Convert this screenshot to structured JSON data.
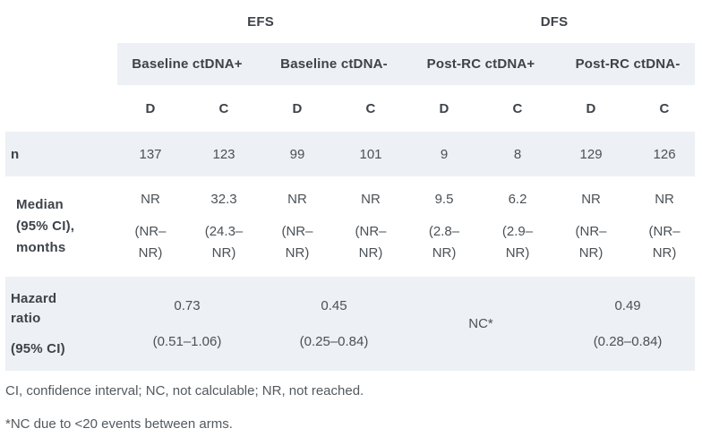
{
  "table": {
    "sections": [
      {
        "label": "EFS"
      },
      {
        "label": "DFS"
      }
    ],
    "groups": [
      {
        "label": "Baseline ctDNA+"
      },
      {
        "label": "Baseline ctDNA-"
      },
      {
        "label": "Post-RC ctDNA+"
      },
      {
        "label": "Post-RC ctDNA-"
      }
    ],
    "subcolumns": [
      "D",
      "C",
      "D",
      "C",
      "D",
      "C",
      "D",
      "C"
    ],
    "rows": {
      "n": {
        "label": "n",
        "values": [
          "137",
          "123",
          "99",
          "101",
          "9",
          "8",
          "129",
          "126"
        ]
      },
      "median": {
        "label": "Median (95% CI), months",
        "cells": [
          {
            "value": "NR",
            "ci_lines": [
              "(NR–",
              "NR)"
            ]
          },
          {
            "value": "32.3",
            "ci_lines": [
              "(24.3–",
              "NR)"
            ]
          },
          {
            "value": "NR",
            "ci_lines": [
              "(NR–",
              "NR)"
            ]
          },
          {
            "value": "NR",
            "ci_lines": [
              "(NR–",
              "NR)"
            ]
          },
          {
            "value": "9.5",
            "ci_lines": [
              "(2.8–",
              "NR)"
            ]
          },
          {
            "value": "6.2",
            "ci_lines": [
              "(2.9–",
              "NR)"
            ]
          },
          {
            "value": "NR",
            "ci_lines": [
              "(NR–",
              "NR)"
            ]
          },
          {
            "value": "NR",
            "ci_lines": [
              "(NR–",
              "NR)"
            ]
          }
        ]
      },
      "hazard": {
        "label_line1": "Hazard ratio",
        "label_line2": "(95% CI)",
        "cells": [
          {
            "value": "0.73",
            "ci": "(0.51–1.06)"
          },
          {
            "value": "0.45",
            "ci": "(0.25–0.84)"
          },
          {
            "value": "NC*",
            "ci": ""
          },
          {
            "value": "0.49",
            "ci": "(0.28–0.84)"
          }
        ]
      }
    }
  },
  "footnotes": [
    "CI, confidence interval; NC, not calculable; NR, not reached.",
    "*NC due to <20 events between arms."
  ],
  "colors": {
    "band": "#edf0f4",
    "heading_text": "#3d4349",
    "body_text": "#4b5156",
    "footnote_text": "#54595e"
  }
}
